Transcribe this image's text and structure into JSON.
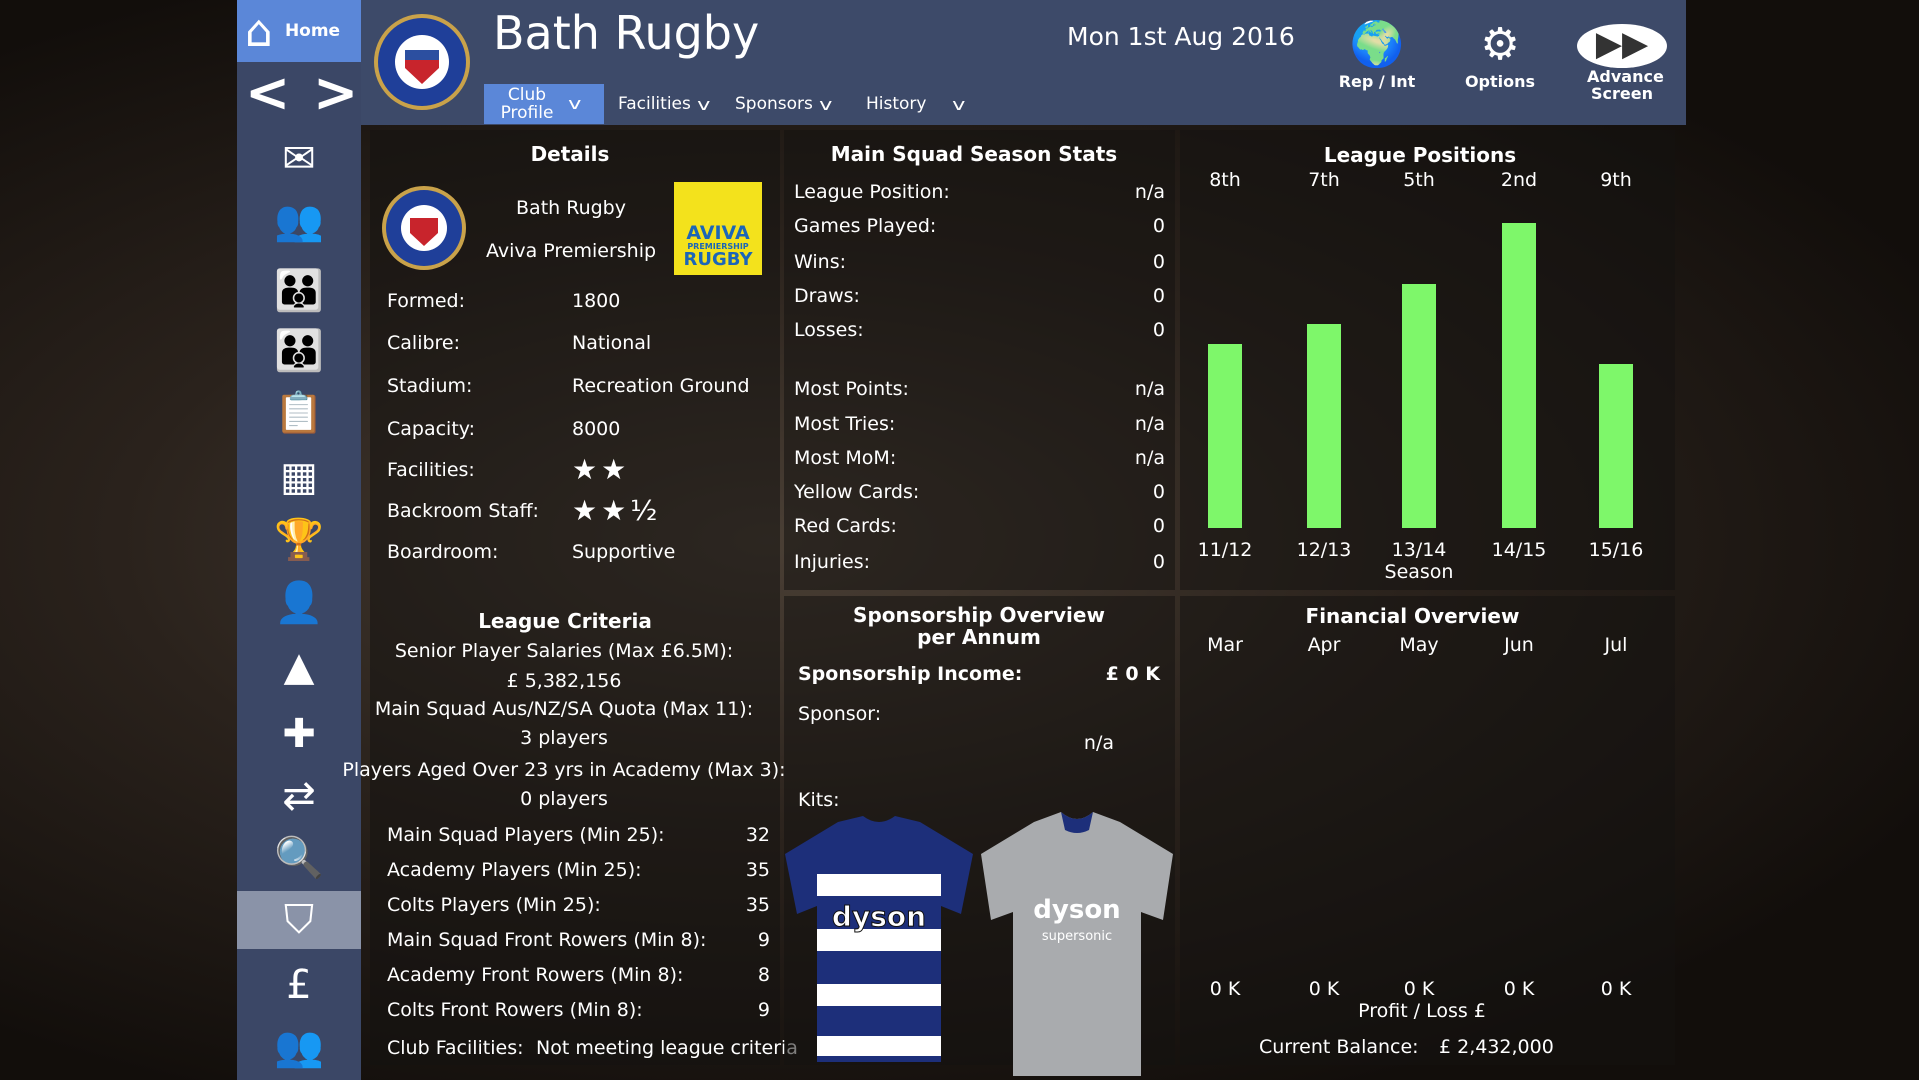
{
  "sidebar": {
    "home_label": "Home",
    "items": [
      "mail-icon",
      "squad-icon",
      "academy-icon",
      "colts-icon",
      "tactics-icon",
      "calendar-icon",
      "trophy-icon",
      "staff-icon",
      "training-cone-icon",
      "medical-icon",
      "transfers-icon",
      "scouting-icon",
      "club-shield-icon",
      "finance-icon",
      "board-icon"
    ],
    "active": "club-shield-icon"
  },
  "header": {
    "title": "Bath Rugby",
    "date": "Mon 1st Aug 2016",
    "tabs": [
      {
        "label": "Club Profile"
      },
      {
        "label": "Facilities"
      },
      {
        "label": "Sponsors"
      },
      {
        "label": "History"
      }
    ],
    "buttons": {
      "rep": "Rep / Int",
      "options": "Options",
      "advance": "Advance Screen"
    }
  },
  "details": {
    "heading": "Details",
    "club": "Bath Rugby",
    "league": "Aviva Premiership",
    "league_logo": "AVIVA PREMIERSHIP RUGBY",
    "rows": [
      {
        "label": "Formed:",
        "value": "1800"
      },
      {
        "label": "Calibre:",
        "value": "National"
      },
      {
        "label": "Stadium:",
        "value": "Recreation Ground"
      },
      {
        "label": "Capacity:",
        "value": "8000"
      },
      {
        "label": "Facilities:",
        "value": "★★"
      },
      {
        "label": "Backroom Staff:",
        "value": "★★½"
      },
      {
        "label": "Boardroom:",
        "value": "Supportive"
      }
    ],
    "facilities_stars": 2,
    "backroom_stars": 2.5
  },
  "criteria": {
    "heading": "League Criteria",
    "lines": [
      "Senior Player Salaries (Max £6.5M):",
      "£ 5,382,156",
      "Main Squad Aus/NZ/SA Quota (Max 11):",
      "3 players",
      "Players Aged Over 23 yrs in Academy (Max 3):",
      "0 players"
    ],
    "rows": [
      {
        "label": "Main Squad Players (Min 25):",
        "value": "32"
      },
      {
        "label": "Academy Players (Min 25):",
        "value": "35"
      },
      {
        "label": "Colts Players (Min 25):",
        "value": "35"
      },
      {
        "label": "Main Squad Front Rowers (Min 8):",
        "value": "9"
      },
      {
        "label": "Academy Front Rowers (Min 8):",
        "value": "8"
      },
      {
        "label": "Colts Front Rowers (Min 8):",
        "value": "9"
      }
    ],
    "club_facilities_label": "Club Facilities:",
    "club_facilities_value": "Not meeting league criteria"
  },
  "stats": {
    "heading": "Main Squad Season Stats",
    "rows": [
      {
        "label": "League Position:",
        "value": "n/a"
      },
      {
        "label": "Games Played:",
        "value": "0"
      },
      {
        "label": "Wins:",
        "value": "0"
      },
      {
        "label": "Draws:",
        "value": "0"
      },
      {
        "label": "Losses:",
        "value": "0"
      },
      {
        "label": "Most Points:",
        "value": "n/a"
      },
      {
        "label": "Most Tries:",
        "value": "n/a"
      },
      {
        "label": "Most MoM:",
        "value": "n/a"
      },
      {
        "label": "Yellow Cards:",
        "value": "0"
      },
      {
        "label": "Red Cards:",
        "value": "0"
      },
      {
        "label": "Injuries:",
        "value": "0"
      }
    ]
  },
  "sponsorship": {
    "heading1": "Sponsorship Overview",
    "heading2": "per Annum",
    "income_label": "Sponsorship Income:",
    "income_value": "£ 0 K",
    "sponsor_label": "Sponsor:",
    "sponsor_value": "n/a",
    "kits_label": "Kits:",
    "home_kit_text": "dyson",
    "away_kit_text": "dyson supersonic"
  },
  "chart_data": {
    "type": "bar",
    "title": "League Positions",
    "xlabel": "Season",
    "categories": [
      "11/12",
      "12/13",
      "13/14",
      "14/15",
      "15/16"
    ],
    "position_labels": [
      "8th",
      "7th",
      "5th",
      "2nd",
      "9th"
    ],
    "values": [
      8,
      7,
      5,
      2,
      9
    ],
    "colors": {
      "bar": "#7ef76a"
    }
  },
  "finance": {
    "heading": "Financial Overview",
    "months": [
      "Mar",
      "Apr",
      "May",
      "Jun",
      "Jul"
    ],
    "values": [
      "0 K",
      "0 K",
      "0 K",
      "0 K",
      "0 K"
    ],
    "axis_label": "Profit / Loss £",
    "balance_label": "Current Balance:",
    "balance_value": "£ 2,432,000"
  }
}
